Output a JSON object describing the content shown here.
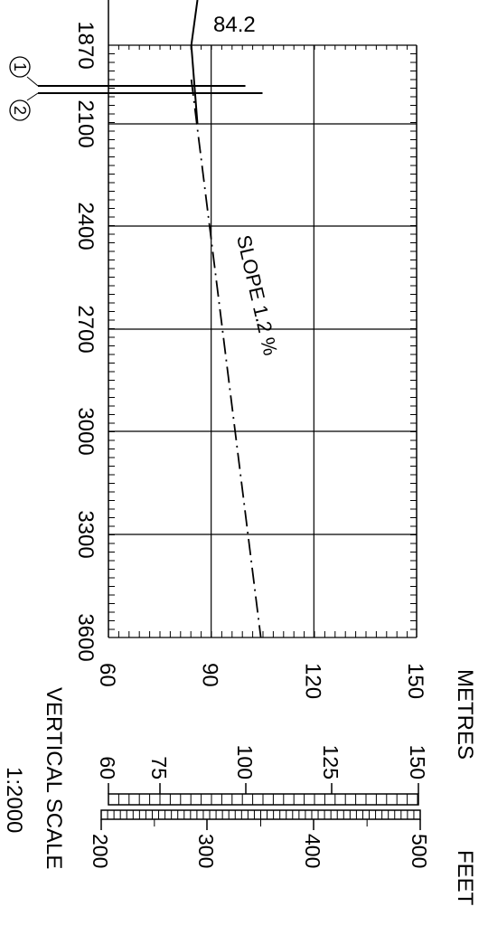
{
  "chart_data": {
    "type": "line",
    "orientation": "rotated-90-clockwise",
    "x_ticks": [
      "1870",
      "2100",
      "2400",
      "2700",
      "3000",
      "3300",
      "3600"
    ],
    "y_ticks": [
      "60",
      "90",
      "120",
      "150"
    ],
    "xlim": [
      1870,
      3600
    ],
    "ylim": [
      60,
      150
    ],
    "grid": true,
    "profile": {
      "x": [
        1870,
        3600
      ],
      "y": [
        84.2,
        104.5
      ],
      "style": "dash-dot"
    },
    "top_line": {
      "x": [
        1800,
        1870,
        2100
      ],
      "y": [
        86,
        84.2,
        86
      ]
    },
    "top_value_label": "84.2",
    "markers": [
      {
        "label": "1",
        "x": 2040,
        "y_top": 100
      },
      {
        "label": "2",
        "x": 2072,
        "y_top": 105
      }
    ],
    "slope_label": "SLOPE 1.2 %"
  },
  "scale": {
    "metres_label": "METRES",
    "feet_label": "FEET",
    "metres_ticks": [
      "60",
      "75",
      "100",
      "125",
      "150"
    ],
    "feet_ticks": [
      "200",
      "300",
      "400",
      "500"
    ],
    "vertical_label": "VERTICAL SCALE",
    "ratio": "1:2000"
  }
}
